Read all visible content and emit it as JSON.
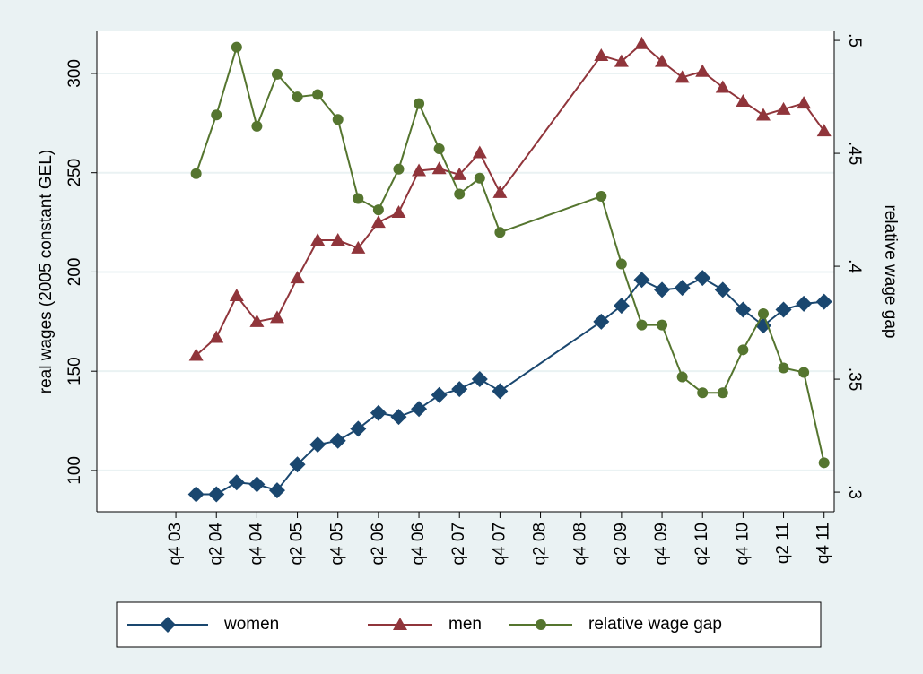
{
  "chart_data": {
    "type": "line",
    "y_label": "real wages (2005 constant GEL)",
    "y2_label": "relative wage gap",
    "x": [
      176,
      177,
      178,
      179,
      180,
      181,
      182,
      183,
      184,
      185,
      186,
      187,
      188,
      189,
      190,
      191,
      196,
      197,
      198,
      199,
      200,
      201,
      202,
      203,
      204,
      205,
      206,
      207
    ],
    "xlim": [
      171.1,
      207.5
    ],
    "xticks": [
      {
        "value": 175,
        "label": "q4 03"
      },
      {
        "value": 177,
        "label": "q2 04"
      },
      {
        "value": 179,
        "label": "q4 04"
      },
      {
        "value": 181,
        "label": "q2 05"
      },
      {
        "value": 183,
        "label": "q4 05"
      },
      {
        "value": 185,
        "label": "q2 06"
      },
      {
        "value": 187,
        "label": "q4 06"
      },
      {
        "value": 189,
        "label": "q2 07"
      },
      {
        "value": 191,
        "label": "q4 07"
      },
      {
        "value": 193,
        "label": "q2 08"
      },
      {
        "value": 195,
        "label": "q4 08"
      },
      {
        "value": 197,
        "label": "q2 09"
      },
      {
        "value": 199,
        "label": "q4 09"
      },
      {
        "value": 201,
        "label": "q2 10"
      },
      {
        "value": 203,
        "label": "q4 10"
      },
      {
        "value": 205,
        "label": "q2 11"
      },
      {
        "value": 207,
        "label": "q4 11"
      }
    ],
    "ylim": [
      79.2,
      321.2
    ],
    "yticks": [
      100,
      150,
      200,
      250,
      300
    ],
    "y2lim": [
      0.2913,
      0.504
    ],
    "y2ticks": [
      {
        "value": 0.3,
        "label": ".3"
      },
      {
        "value": 0.35,
        "label": ".35"
      },
      {
        "value": 0.4,
        "label": ".4"
      },
      {
        "value": 0.45,
        "label": ".45"
      },
      {
        "value": 0.5,
        "label": ".5"
      }
    ],
    "grid": true,
    "series": [
      {
        "name": "women",
        "color": "#1a476f",
        "marker": "diamond",
        "values": [
          88,
          88,
          94,
          93,
          90,
          103,
          113,
          115,
          121,
          129,
          127,
          131,
          138,
          141,
          146,
          140,
          175,
          183,
          196,
          191,
          192,
          197,
          191,
          181,
          173,
          181,
          184,
          185
        ]
      },
      {
        "name": "men",
        "color": "#90353b",
        "marker": "triangle",
        "values": [
          158,
          167,
          188,
          175,
          177,
          197,
          216,
          216,
          212,
          225,
          230,
          251,
          252,
          249,
          260,
          240,
          309,
          306,
          315,
          306,
          298,
          301,
          293,
          286,
          279,
          282,
          285,
          271
        ]
      },
      {
        "name": "relative wage gap",
        "color": "#55752f",
        "marker": "circle",
        "axis": "y2",
        "values": [
          0.441,
          0.467,
          0.497,
          0.462,
          0.485,
          0.475,
          0.476,
          0.465,
          0.43,
          0.425,
          0.443,
          0.472,
          0.452,
          0.432,
          0.439,
          0.415,
          0.431,
          0.401,
          0.374,
          0.374,
          0.351,
          0.344,
          0.344,
          0.363,
          0.379,
          0.355,
          0.353,
          0.313
        ]
      }
    ]
  }
}
